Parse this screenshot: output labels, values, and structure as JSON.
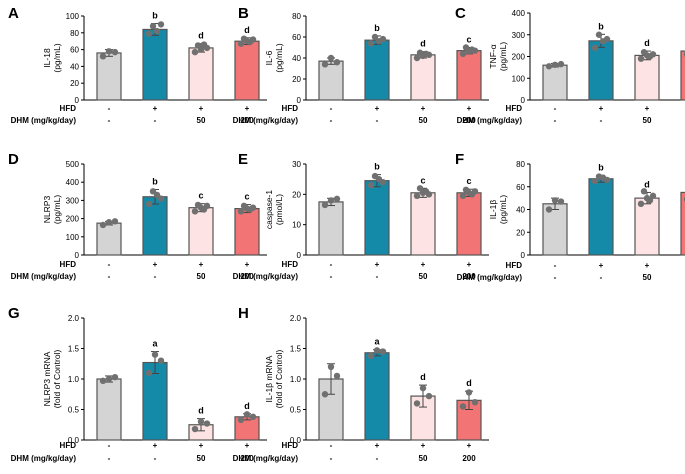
{
  "row_labels": {
    "hfd": "HFD",
    "dhm": "DHM (mg/kg/day)"
  },
  "groups": [
    {
      "hfd": "-",
      "dhm": "-"
    },
    {
      "hfd": "+",
      "dhm": "-"
    },
    {
      "hfd": "+",
      "dhm": "50"
    },
    {
      "hfd": "+",
      "dhm": "200"
    }
  ],
  "colors": {
    "fills": [
      "#d4d4d4",
      "#1589a8",
      "#fde3e3",
      "#f27474"
    ],
    "edge": "#555555",
    "dot": "#707070"
  },
  "chart_data": [
    {
      "id": "A",
      "type": "bar",
      "title": "",
      "ylabel": [
        "IL-18",
        "(pg/mL)"
      ],
      "ylim": [
        0,
        100
      ],
      "yticks": [
        0,
        20,
        40,
        60,
        80,
        100
      ],
      "categories": [
        "Control",
        "HFD",
        "HFD+DHM 50",
        "HFD+DHM 200"
      ],
      "values": [
        56,
        84,
        62,
        70
      ],
      "errors": [
        4,
        7,
        5,
        4
      ],
      "points": [
        [
          52,
          58,
          57
        ],
        [
          79,
          88,
          82,
          90
        ],
        [
          57,
          65,
          60,
          66,
          62
        ],
        [
          67,
          73,
          70,
          69,
          72
        ]
      ],
      "letters": [
        "",
        "b",
        "d",
        "d"
      ]
    },
    {
      "id": "B",
      "type": "bar",
      "title": "",
      "ylabel": [
        "IL-6",
        "(pg/mL)"
      ],
      "ylim": [
        0,
        80
      ],
      "yticks": [
        0,
        20,
        40,
        60,
        80
      ],
      "categories": [
        "Control",
        "HFD",
        "HFD+DHM 50",
        "HFD+DHM 200"
      ],
      "values": [
        37,
        57,
        43,
        47
      ],
      "errors": [
        3,
        4,
        3,
        3
      ],
      "points": [
        [
          34,
          40,
          36
        ],
        [
          54,
          60,
          56,
          58
        ],
        [
          40,
          45,
          42,
          44,
          43
        ],
        [
          44,
          50,
          46,
          48,
          47
        ]
      ],
      "letters": [
        "",
        "b",
        "d",
        "c"
      ]
    },
    {
      "id": "C",
      "type": "bar",
      "title": "",
      "ylabel": [
        "TNF-α",
        "(pg/mL)"
      ],
      "ylim": [
        0,
        400
      ],
      "yticks": [
        0,
        100,
        200,
        300,
        400
      ],
      "categories": [
        "Control",
        "HFD",
        "HFD+DHM 50",
        "HFD+DHM 200"
      ],
      "values": [
        160,
        272,
        205,
        225
      ],
      "errors": [
        8,
        30,
        20,
        18
      ],
      "points": [
        [
          155,
          162,
          165
        ],
        [
          240,
          300,
          270,
          280
        ],
        [
          190,
          220,
          205,
          200,
          210
        ],
        [
          210,
          240,
          225,
          230,
          220
        ]
      ],
      "letters": [
        "",
        "b",
        "d",
        "c"
      ]
    },
    {
      "id": "D",
      "type": "bar",
      "title": "",
      "ylabel": [
        "NLRP3",
        "(pg/mL)"
      ],
      "ylim": [
        0,
        500
      ],
      "yticks": [
        0,
        100,
        200,
        300,
        400,
        500
      ],
      "categories": [
        "Control",
        "HFD",
        "HFD+DHM 50",
        "HFD+DHM 200"
      ],
      "values": [
        175,
        320,
        260,
        255
      ],
      "errors": [
        10,
        40,
        22,
        22
      ],
      "points": [
        [
          165,
          180,
          185
        ],
        [
          280,
          350,
          330,
          310
        ],
        [
          240,
          275,
          260,
          250,
          270
        ],
        [
          240,
          270,
          255,
          250,
          260
        ]
      ],
      "letters": [
        "",
        "b",
        "c",
        "c"
      ]
    },
    {
      "id": "E",
      "type": "bar",
      "title": "",
      "ylabel": [
        "caspase-1",
        "(pmol/L)"
      ],
      "ylim": [
        0,
        30
      ],
      "yticks": [
        0,
        10,
        20,
        30
      ],
      "categories": [
        "Control",
        "HFD",
        "HFD+DHM 50",
        "HFD+DHM 200"
      ],
      "values": [
        17.5,
        24.5,
        20.5,
        20.5
      ],
      "errors": [
        1.2,
        2,
        1.5,
        1.2
      ],
      "points": [
        [
          16.5,
          18,
          18.5
        ],
        [
          23,
          26,
          25,
          24
        ],
        [
          19.5,
          22,
          20.5,
          21,
          20
        ],
        [
          19.5,
          21.5,
          20.5,
          20,
          21
        ]
      ],
      "letters": [
        "",
        "b",
        "c",
        "c"
      ]
    },
    {
      "id": "F",
      "type": "bar",
      "title": "",
      "ylabel": [
        "IL-1β",
        "(pg/mL)"
      ],
      "ylim": [
        0,
        80
      ],
      "yticks": [
        0,
        20,
        40,
        60,
        80
      ],
      "categories": [
        "Control",
        "HFD",
        "HFD+DHM 50",
        "HFD+DHM 200"
      ],
      "values": [
        45,
        67,
        50,
        55
      ],
      "errors": [
        5,
        3,
        5,
        6
      ],
      "points": [
        [
          40,
          48,
          47
        ],
        [
          65,
          69,
          68,
          66
        ],
        [
          45,
          56,
          50,
          48,
          52
        ],
        [
          49,
          62,
          55,
          53,
          57
        ]
      ],
      "letters": [
        "",
        "b",
        "d",
        "c"
      ]
    },
    {
      "id": "G",
      "type": "bar",
      "title": "",
      "ylabel": [
        "NLRP3 mRNA",
        "(fold of Control)"
      ],
      "ylim": [
        0,
        2.0
      ],
      "yticks": [
        0,
        0.5,
        1.0,
        1.5,
        2.0
      ],
      "tick_labels": [
        "0.0",
        "0.5",
        "1.0",
        "1.5",
        "2.0"
      ],
      "categories": [
        "Control",
        "HFD",
        "HFD+DHM 50",
        "HFD+DHM 200"
      ],
      "values": [
        1.0,
        1.27,
        0.25,
        0.38
      ],
      "errors": [
        0.05,
        0.18,
        0.1,
        0.05
      ],
      "points": [
        [
          0.97,
          1.0,
          1.03
        ],
        [
          1.1,
          1.4,
          1.3
        ],
        [
          0.18,
          0.3,
          0.27
        ],
        [
          0.33,
          0.42,
          0.38
        ]
      ],
      "letters": [
        "",
        "a",
        "d",
        "d"
      ]
    },
    {
      "id": "H",
      "type": "bar",
      "title": "",
      "ylabel": [
        "IL-1β mRNA",
        "(fold of Control)"
      ],
      "ylim": [
        0,
        2.0
      ],
      "yticks": [
        0,
        0.5,
        1.0,
        1.5,
        2.0
      ],
      "tick_labels": [
        "0.0",
        "0.5",
        "1.0",
        "1.5",
        "2.0"
      ],
      "categories": [
        "Control",
        "HFD",
        "HFD+DHM 50",
        "HFD+DHM 200"
      ],
      "values": [
        1.0,
        1.43,
        0.72,
        0.65
      ],
      "errors": [
        0.25,
        0.05,
        0.18,
        0.15
      ],
      "points": [
        [
          0.75,
          1.2,
          1.05
        ],
        [
          1.38,
          1.47,
          1.45
        ],
        [
          0.6,
          0.85,
          0.72
        ],
        [
          0.55,
          0.78,
          0.62
        ]
      ],
      "letters": [
        "",
        "a",
        "d",
        "d"
      ]
    }
  ]
}
